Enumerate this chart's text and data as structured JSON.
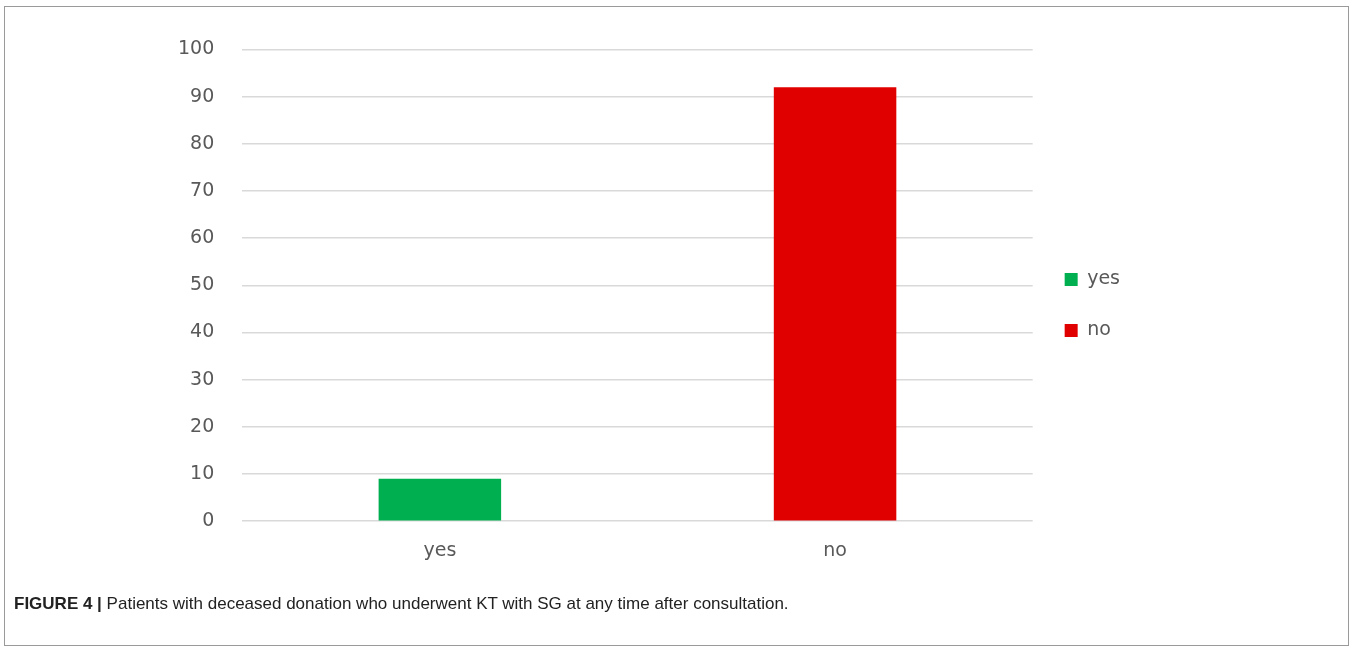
{
  "chart_data": {
    "type": "bar",
    "categories": [
      "yes",
      "no"
    ],
    "series": [
      {
        "name": "yes",
        "color": "#00b050",
        "values": [
          9,
          null
        ]
      },
      {
        "name": "no",
        "color": "#e00000",
        "values": [
          null,
          92
        ]
      }
    ],
    "ylim": [
      0,
      100
    ],
    "yticks": [
      0,
      10,
      20,
      30,
      40,
      50,
      60,
      70,
      80,
      90,
      100
    ],
    "grid": "y",
    "legend": "right",
    "annotations": [
      "FIGURE 4 | Patients with deceased donation who underwent KT with SG at any time after consultation."
    ]
  }
}
